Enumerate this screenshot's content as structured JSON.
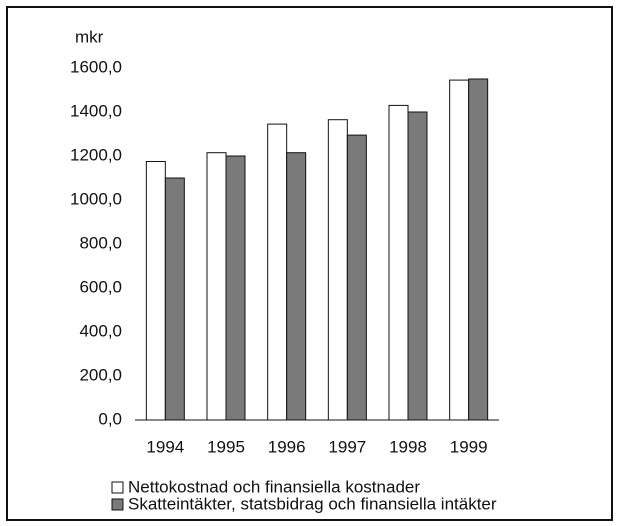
{
  "chart_data": {
    "type": "bar",
    "y_label": "mkr",
    "categories": [
      "1994",
      "1995",
      "1996",
      "1997",
      "1998",
      "1999"
    ],
    "series": [
      {
        "name": "Nettokostnad och finansiella kostnader",
        "color": "#ffffff",
        "values": [
          1175,
          1215,
          1345,
          1365,
          1430,
          1545
        ]
      },
      {
        "name": "Skatteintäkter, statsbidrag och finansiella intäkter",
        "color": "#7a7a7a",
        "values": [
          1100,
          1200,
          1215,
          1295,
          1400,
          1550
        ]
      }
    ],
    "ylim": [
      0,
      1600
    ],
    "yticks": [
      {
        "value": 0,
        "label": "0,0"
      },
      {
        "value": 200,
        "label": "200,0"
      },
      {
        "value": 400,
        "label": "400,0"
      },
      {
        "value": 600,
        "label": "600,0"
      },
      {
        "value": 800,
        "label": "800,0"
      },
      {
        "value": 1000,
        "label": "1000,0"
      },
      {
        "value": 1200,
        "label": "1200,0"
      },
      {
        "value": 1400,
        "label": "1400,0"
      },
      {
        "value": 1600,
        "label": "1600,0"
      }
    ],
    "grid": false,
    "legend": "bottom"
  }
}
